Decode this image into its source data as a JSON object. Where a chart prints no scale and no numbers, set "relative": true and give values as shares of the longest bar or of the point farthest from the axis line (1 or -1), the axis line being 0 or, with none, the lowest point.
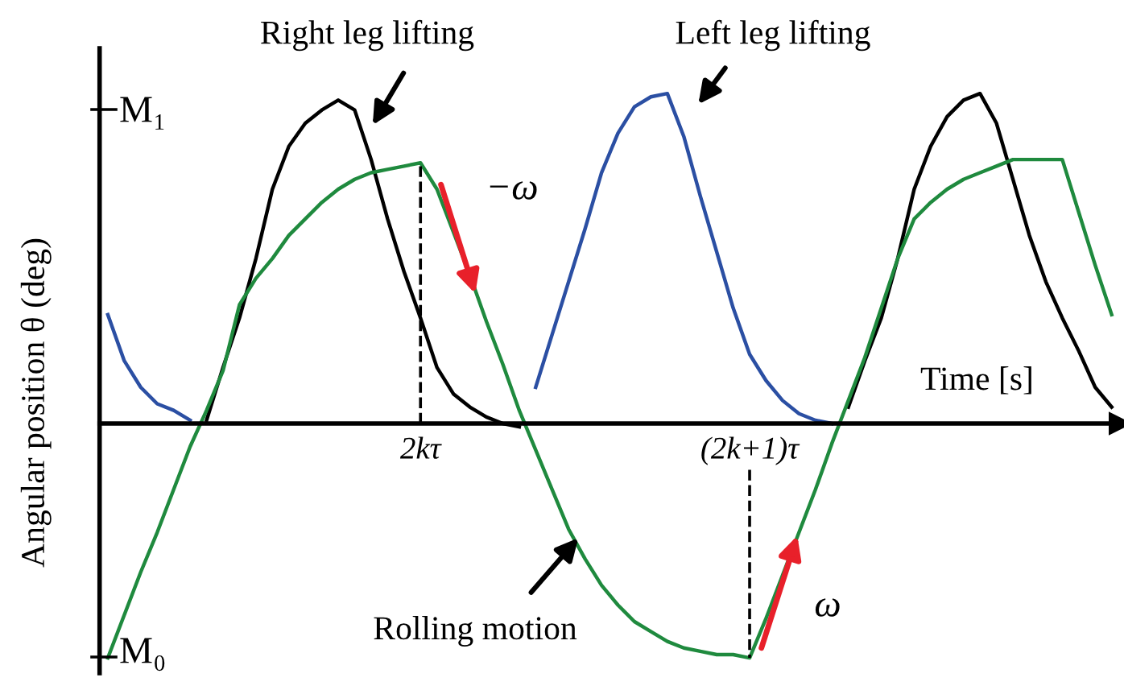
{
  "chart_data": {
    "type": "line",
    "relative": true,
    "xlabel": "Time [s]",
    "ylabel": "Angular position θ (deg)",
    "categories": [
      null,
      null,
      null,
      null,
      null,
      null,
      null,
      null,
      null,
      null,
      null,
      null,
      null,
      null,
      null,
      null,
      null,
      null,
      null,
      "2kτ",
      null,
      null,
      null,
      null,
      null,
      null,
      null,
      null,
      null,
      null,
      null,
      null,
      null,
      null,
      null,
      null,
      null,
      null,
      null,
      "(2k+1)τ",
      null,
      null,
      null,
      null,
      null,
      null,
      null,
      null,
      null,
      null,
      null,
      null,
      null,
      null,
      null,
      null,
      null,
      null,
      null,
      null,
      null,
      null
    ],
    "series": [
      {
        "color": "#000000",
        "values": [
          null,
          null,
          null,
          null,
          null,
          null,
          0.01,
          0.17,
          0.32,
          0.5,
          0.71,
          0.84,
          0.91,
          0.95,
          0.98,
          0.95,
          0.8,
          0.62,
          0.46,
          0.32,
          0.17,
          0.09,
          0.05,
          0.02,
          0.0,
          -0.01,
          null,
          null,
          null,
          null,
          null,
          null,
          null,
          null,
          null,
          null,
          null,
          null,
          null,
          null,
          null,
          null,
          null,
          null,
          null,
          0.05,
          0.19,
          0.32,
          0.5,
          0.71,
          0.84,
          0.93,
          0.98,
          1.0,
          0.91,
          0.74,
          0.57,
          0.43,
          0.32,
          0.22,
          0.11,
          0.05
        ]
      },
      {
        "color": "#2b4fa3",
        "values": [
          0.33,
          0.19,
          0.11,
          0.06,
          0.04,
          0.01,
          null,
          null,
          null,
          null,
          null,
          null,
          null,
          null,
          null,
          null,
          null,
          null,
          null,
          null,
          null,
          null,
          null,
          null,
          null,
          null,
          0.11,
          0.27,
          0.43,
          0.59,
          0.76,
          0.88,
          0.96,
          0.99,
          1.0,
          0.87,
          0.69,
          0.52,
          0.35,
          0.21,
          0.13,
          0.07,
          0.03,
          0.01,
          0.0,
          null,
          null,
          null,
          null,
          null,
          null,
          null,
          null,
          null,
          null,
          null,
          null,
          null,
          null,
          null,
          null,
          null
        ]
      },
      {
        "color": "#1f8a3e",
        "values": [
          -0.71,
          -0.58,
          -0.45,
          -0.33,
          -0.2,
          -0.07,
          0.04,
          0.16,
          0.36,
          0.44,
          0.5,
          0.57,
          0.62,
          0.67,
          0.71,
          0.74,
          0.76,
          0.77,
          0.78,
          0.79,
          0.71,
          0.58,
          0.45,
          0.31,
          0.18,
          0.04,
          -0.08,
          -0.2,
          -0.32,
          -0.41,
          -0.49,
          -0.55,
          -0.6,
          -0.63,
          -0.66,
          -0.68,
          -0.69,
          -0.7,
          -0.7,
          -0.71,
          -0.59,
          -0.46,
          -0.33,
          -0.2,
          -0.06,
          0.07,
          0.2,
          0.35,
          0.5,
          0.62,
          0.67,
          0.71,
          0.74,
          0.76,
          0.78,
          0.8,
          0.8,
          0.8,
          0.8,
          0.64,
          0.48,
          0.33
        ]
      }
    ],
    "ref_lines": [
      {
        "axis": "x",
        "value": "2kτ",
        "line_style": "dashed"
      },
      {
        "axis": "x",
        "value": "(2k+1)τ",
        "line_style": "dashed"
      }
    ],
    "annotations": [
      "Right leg lifting",
      "Left leg lifting",
      "Rolling motion",
      "−ω",
      "ω",
      "M₁",
      "M₀"
    ],
    "marker": "none",
    "line_style": "solid"
  }
}
